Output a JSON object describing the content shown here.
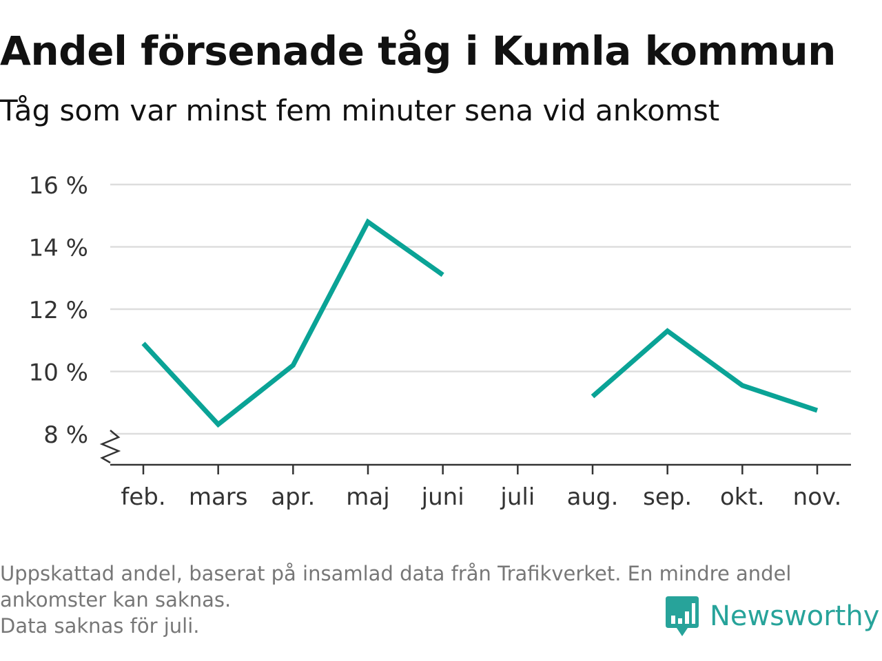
{
  "title": "Andel försenade tåg i Kumla kommun",
  "subtitle": "Tåg som var minst fem minuter sena vid ankomst",
  "footnote": {
    "line1": "Uppskattad andel, baserat på insamlad data från Trafikverket. En mindre andel",
    "line2": "ankomster kan saknas.",
    "line3": "Data saknas för juli."
  },
  "logo": {
    "text": "Newsworthy",
    "icon": "chart-bubble-icon"
  },
  "colors": {
    "series": "#0aa396",
    "grid": "#dddddd",
    "axis": "#333333",
    "text": "#333333",
    "logo": "#27a39a"
  },
  "chart_data": {
    "type": "line",
    "categories": [
      "feb.",
      "mars",
      "apr.",
      "maj",
      "juni",
      "juli",
      "aug.",
      "sep.",
      "okt.",
      "nov."
    ],
    "series": [
      {
        "values": [
          10.9,
          8.3,
          10.2,
          14.8,
          13.1,
          null,
          9.2,
          11.3,
          9.55,
          8.75
        ]
      }
    ],
    "y_ticks": [
      8,
      10,
      12,
      14,
      16
    ],
    "y_tick_labels": [
      "8 %",
      "10 %",
      "12 %",
      "14 %",
      "16 %"
    ],
    "ylim": [
      7,
      16
    ],
    "y_axis_break": true,
    "grid": true,
    "xlabel": "",
    "ylabel": ""
  }
}
